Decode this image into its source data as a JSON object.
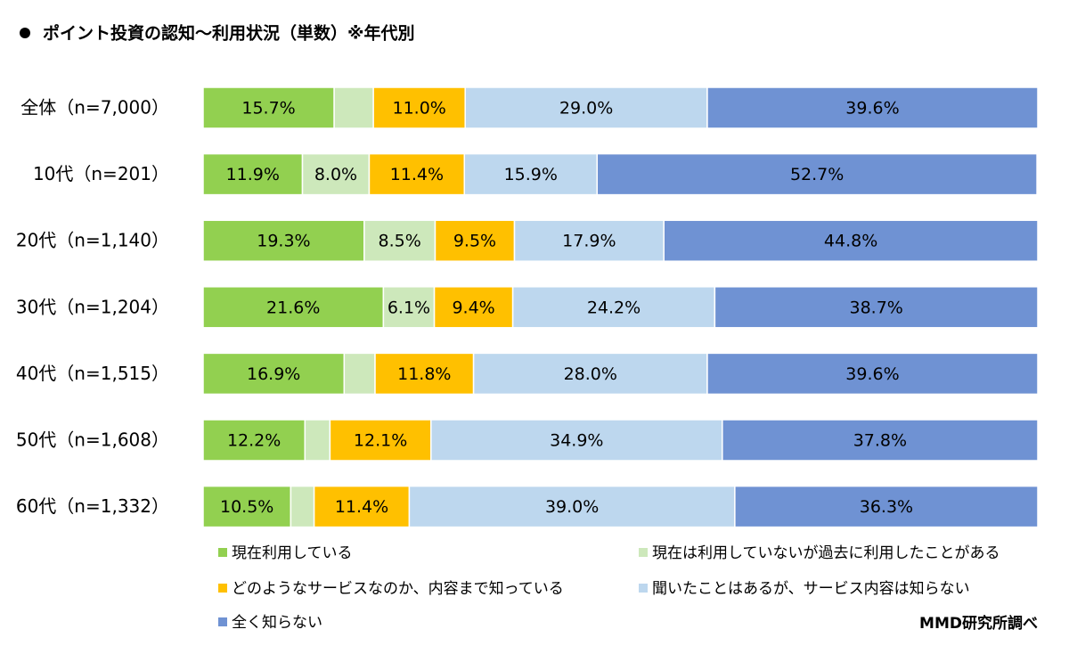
{
  "chart_data": {
    "type": "stacked-bar-horizontal",
    "title": "ポイント投資の認知～利用状況（単数）※年代別",
    "categories": [
      "全体（n=7,000）",
      "10代（n=201）",
      "20代（n=1,140）",
      "30代（n=1,204）",
      "40代（n=1,515）",
      "50代（n=1,608）",
      "60代（n=1,332）"
    ],
    "xlim": [
      0,
      100
    ],
    "legend": "bottom",
    "series": [
      {
        "name": "現在利用している",
        "color": "#92d050",
        "values": [
          15.7,
          11.9,
          19.3,
          21.6,
          16.9,
          12.2,
          10.5
        ],
        "value_labels": [
          "15.7%",
          "11.9%",
          "19.3%",
          "21.6%",
          "16.9%",
          "12.2%",
          "10.5%"
        ]
      },
      {
        "name": "現在は利用していないが過去に利用したことがある",
        "color": "#cde8bb",
        "values": [
          4.7,
          8.0,
          8.5,
          6.1,
          3.7,
          3.0,
          2.8
        ],
        "value_labels": [
          null,
          "8.0%",
          "8.5%",
          "6.1%",
          null,
          null,
          null
        ]
      },
      {
        "name": "どのようなサービスなのか、内容まで知っている",
        "color": "#ffc000",
        "values": [
          11.0,
          11.4,
          9.5,
          9.4,
          11.8,
          12.1,
          11.4
        ],
        "value_labels": [
          "11.0%",
          "11.4%",
          "9.5%",
          "9.4%",
          "11.8%",
          "12.1%",
          "11.4%"
        ]
      },
      {
        "name": "聞いたことはあるが、サービス内容は知らない",
        "color": "#bdd7ee",
        "values": [
          29.0,
          15.9,
          17.9,
          24.2,
          28.0,
          34.9,
          39.0
        ],
        "value_labels": [
          "29.0%",
          "15.9%",
          "17.9%",
          "24.2%",
          "28.0%",
          "34.9%",
          "39.0%"
        ]
      },
      {
        "name": "全く知らない",
        "color": "#6f92d3",
        "values": [
          39.6,
          52.7,
          44.8,
          38.7,
          39.6,
          37.8,
          36.3
        ],
        "value_labels": [
          "39.6%",
          "52.7%",
          "44.8%",
          "38.7%",
          "39.6%",
          "37.8%",
          "36.3%"
        ]
      }
    ],
    "source": "MMD研究所調べ"
  }
}
